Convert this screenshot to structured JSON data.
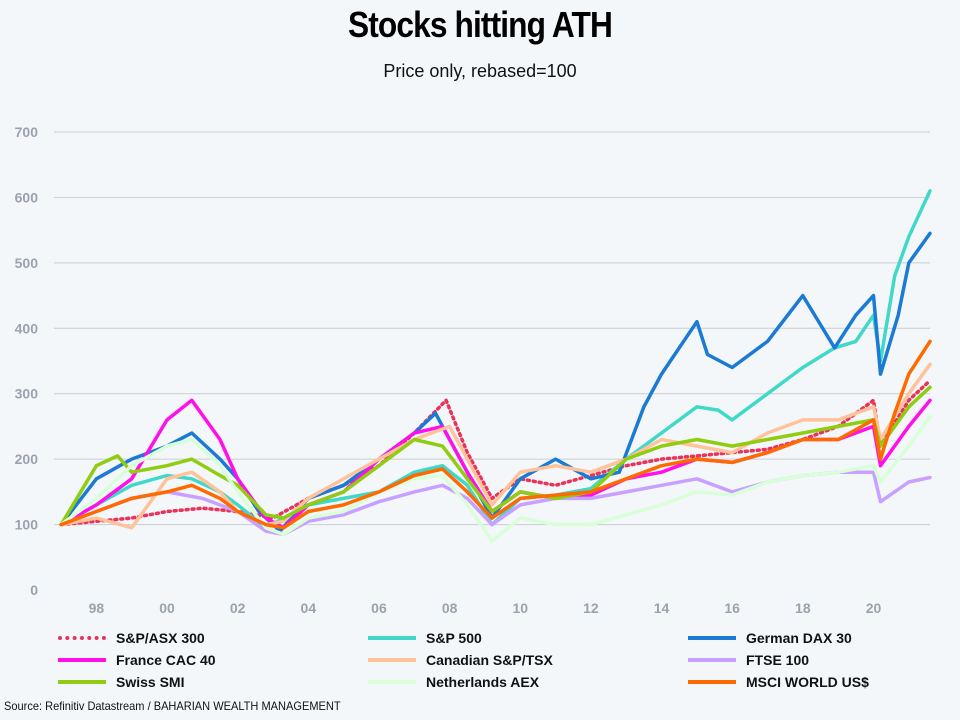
{
  "chart_data": {
    "type": "line",
    "title": "Stocks hitting ATH",
    "subtitle": "Price only, rebased=100",
    "source": "Source: Refinitiv Datastream / BAHARIAN WEALTH MANAGEMENT",
    "xlim": [
      1996.8,
      2021.6
    ],
    "ylim": [
      0,
      700
    ],
    "y_ticks": [
      0,
      100,
      200,
      300,
      400,
      500,
      600,
      700
    ],
    "x_ticks": [
      1998,
      2000,
      2002,
      2004,
      2006,
      2008,
      2010,
      2012,
      2014,
      2016,
      2018,
      2020
    ],
    "x_tick_labels": [
      "98",
      "00",
      "02",
      "04",
      "06",
      "08",
      "10",
      "12",
      "14",
      "16",
      "18",
      "20"
    ],
    "grid": true,
    "legend_position": "bottom",
    "series": [
      {
        "name": "S&P/ASX 300",
        "color": "#e8335a",
        "style": "dotted",
        "x": [
          1997,
          1998,
          1999,
          2000,
          2001,
          2002,
          2003,
          2004,
          2005,
          2006,
          2007,
          2007.9,
          2008.5,
          2009.2,
          2010,
          2011,
          2012,
          2013,
          2014,
          2015,
          2016,
          2017,
          2018,
          2019,
          2020,
          2020.2,
          2021,
          2021.6
        ],
        "y": [
          100,
          105,
          110,
          120,
          125,
          120,
          110,
          140,
          160,
          190,
          240,
          290,
          210,
          140,
          170,
          160,
          175,
          190,
          200,
          205,
          210,
          215,
          230,
          250,
          290,
          220,
          290,
          320
        ]
      },
      {
        "name": "S&P 500",
        "color": "#40d8c8",
        "style": "solid",
        "x": [
          1997,
          1998,
          1999,
          2000,
          2000.7,
          2001.5,
          2002,
          2002.8,
          2003.3,
          2004,
          2005,
          2006,
          2007,
          2007.8,
          2008.5,
          2009.2,
          2010,
          2011,
          2012,
          2013,
          2014,
          2015,
          2015.6,
          2016,
          2017,
          2018,
          2018.9,
          2019.5,
          2020,
          2020.2,
          2020.6,
          2021,
          2021.6
        ],
        "y": [
          100,
          130,
          160,
          175,
          170,
          150,
          130,
          95,
          110,
          130,
          140,
          150,
          180,
          190,
          160,
          100,
          140,
          145,
          155,
          200,
          240,
          280,
          275,
          260,
          300,
          340,
          370,
          380,
          420,
          350,
          480,
          540,
          610
        ]
      },
      {
        "name": "German DAX 30",
        "color": "#1a7ad4",
        "style": "solid",
        "x": [
          1997,
          1998,
          1999,
          2000,
          2000.7,
          2001.5,
          2002,
          2002.6,
          2003.2,
          2004,
          2005,
          2006,
          2007,
          2007.6,
          2008.5,
          2009.2,
          2010,
          2011,
          2012,
          2012.8,
          2013.5,
          2014,
          2015,
          2015.3,
          2016,
          2017,
          2018,
          2018.9,
          2019.5,
          2020,
          2020.2,
          2020.7,
          2021,
          2021.6
        ],
        "y": [
          100,
          170,
          200,
          220,
          240,
          200,
          170,
          120,
          90,
          140,
          160,
          200,
          240,
          270,
          180,
          110,
          170,
          200,
          170,
          180,
          280,
          330,
          410,
          360,
          340,
          380,
          450,
          370,
          420,
          450,
          330,
          420,
          500,
          545
        ]
      },
      {
        "name": "France CAC 40",
        "color": "#ff10ea",
        "style": "solid",
        "x": [
          1997,
          1998,
          1999,
          2000,
          2000.7,
          2001.5,
          2002,
          2002.8,
          2003.3,
          2004,
          2005,
          2006,
          2007,
          2007.8,
          2008.5,
          2009.2,
          2010,
          2011,
          2012,
          2013,
          2014,
          2015,
          2016,
          2017,
          2018,
          2019,
          2020,
          2020.2,
          2021,
          2021.6
        ],
        "y": [
          100,
          130,
          170,
          260,
          290,
          230,
          170,
          110,
          95,
          130,
          150,
          200,
          240,
          250,
          180,
          120,
          150,
          140,
          145,
          170,
          180,
          200,
          195,
          210,
          230,
          230,
          250,
          190,
          250,
          290
        ]
      },
      {
        "name": "Canadian S&P/TSX",
        "color": "#ffc29a",
        "style": "solid",
        "x": [
          1997,
          1998,
          1999,
          2000,
          2000.7,
          2001.5,
          2002,
          2002.8,
          2003.3,
          2004,
          2005,
          2006,
          2007,
          2008,
          2008.5,
          2009.2,
          2010,
          2011,
          2012,
          2013,
          2014,
          2015,
          2016,
          2017,
          2018,
          2019,
          2020,
          2020.2,
          2021,
          2021.6
        ],
        "y": [
          100,
          110,
          95,
          170,
          180,
          150,
          120,
          100,
          105,
          140,
          170,
          200,
          230,
          250,
          200,
          130,
          180,
          190,
          180,
          200,
          230,
          220,
          210,
          240,
          260,
          260,
          280,
          230,
          300,
          345
        ]
      },
      {
        "name": "FTSE 100",
        "color": "#c8a0ff",
        "style": "solid",
        "x": [
          1997,
          1998,
          1999,
          2000,
          2001,
          2002,
          2002.8,
          2003.3,
          2004,
          2005,
          2006,
          2007,
          2007.8,
          2008.5,
          2009.2,
          2010,
          2011,
          2012,
          2013,
          2014,
          2015,
          2016,
          2017,
          2018,
          2019,
          2020,
          2020.2,
          2021,
          2021.6
        ],
        "y": [
          100,
          120,
          140,
          150,
          140,
          120,
          90,
          85,
          105,
          115,
          135,
          150,
          160,
          140,
          100,
          130,
          140,
          140,
          150,
          160,
          170,
          150,
          165,
          175,
          180,
          180,
          135,
          165,
          172
        ]
      },
      {
        "name": "Swiss SMI",
        "color": "#90cc10",
        "style": "solid",
        "x": [
          1997,
          1998,
          1998.6,
          1999,
          2000,
          2000.7,
          2001.5,
          2002,
          2002.8,
          2003.3,
          2004,
          2005,
          2006,
          2007,
          2007.8,
          2008.5,
          2009.2,
          2010,
          2011,
          2012,
          2013,
          2014,
          2015,
          2016,
          2017,
          2018,
          2019,
          2020,
          2020.2,
          2021,
          2021.6
        ],
        "y": [
          100,
          190,
          205,
          180,
          190,
          200,
          175,
          160,
          115,
          110,
          130,
          150,
          190,
          230,
          220,
          170,
          120,
          150,
          140,
          150,
          200,
          220,
          230,
          220,
          230,
          240,
          250,
          260,
          220,
          280,
          310
        ]
      },
      {
        "name": "Netherlands AEX",
        "color": "#d8ffd8",
        "style": "solid",
        "x": [
          1997,
          1998,
          1999,
          2000,
          2000.7,
          2001.5,
          2002,
          2002.8,
          2003.3,
          2004,
          2005,
          2006,
          2007,
          2007.8,
          2008.5,
          2009.2,
          2010,
          2011,
          2012,
          2013,
          2014,
          2015,
          2016,
          2017,
          2018,
          2019,
          2020,
          2020.2,
          2021,
          2021.6
        ],
        "y": [
          100,
          140,
          190,
          220,
          230,
          190,
          150,
          95,
          85,
          110,
          120,
          150,
          170,
          175,
          130,
          75,
          110,
          100,
          100,
          115,
          130,
          150,
          145,
          165,
          175,
          180,
          190,
          165,
          220,
          265
        ]
      },
      {
        "name": "MSCI WORLD US$",
        "color": "#ff6a00",
        "style": "solid",
        "x": [
          1997,
          1998,
          1999,
          2000,
          2000.7,
          2001.5,
          2002,
          2002.8,
          2003.3,
          2004,
          2005,
          2006,
          2007,
          2007.8,
          2008.5,
          2009.2,
          2010,
          2011,
          2012,
          2013,
          2014,
          2015,
          2016,
          2017,
          2018,
          2019,
          2020,
          2020.2,
          2020.6,
          2021,
          2021.6
        ],
        "y": [
          100,
          120,
          140,
          150,
          160,
          140,
          120,
          100,
          95,
          120,
          130,
          150,
          175,
          185,
          150,
          110,
          140,
          145,
          150,
          170,
          190,
          200,
          195,
          210,
          230,
          230,
          260,
          200,
          270,
          330,
          380
        ]
      }
    ]
  }
}
